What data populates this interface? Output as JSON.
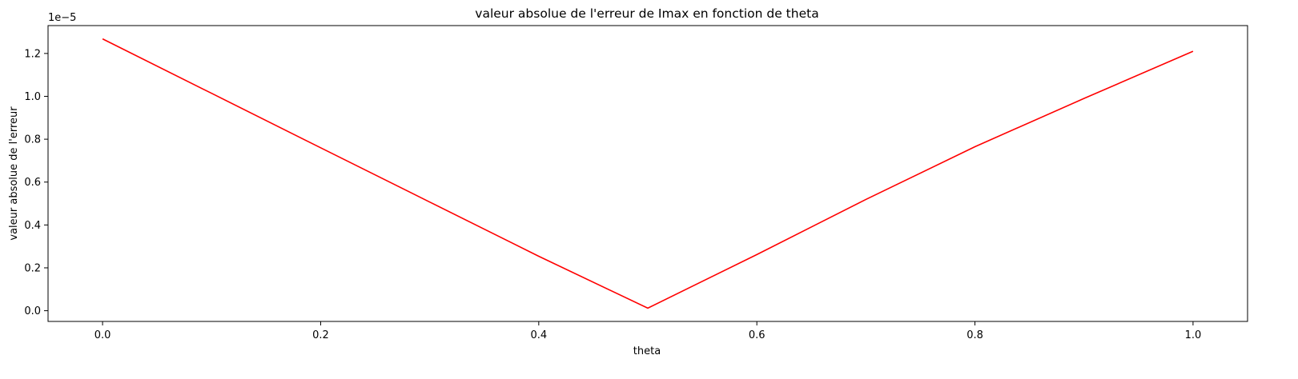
{
  "chart_data": {
    "type": "line",
    "title": "valeur absolue de l'erreur de Imax en fonction de theta",
    "xlabel": "theta",
    "ylabel": "valeur absolue de l'erreur",
    "y_offset_label": "1e−5",
    "x_ticks": [
      0.0,
      0.2,
      0.4,
      0.6,
      0.8,
      1.0
    ],
    "x_tick_labels": [
      "0.0",
      "0.2",
      "0.4",
      "0.6",
      "0.8",
      "1.0"
    ],
    "y_ticks": [
      0.0,
      0.2,
      0.4,
      0.6,
      0.8,
      1.0,
      1.2
    ],
    "y_tick_labels": [
      "0.0",
      "0.2",
      "0.4",
      "0.6",
      "0.8",
      "1.0",
      "1.2"
    ],
    "y_scale_multiplier": 1e-05,
    "xlim": [
      -0.05,
      1.05
    ],
    "ylim": [
      -0.05,
      1.33
    ],
    "grid": false,
    "series": [
      {
        "color": "#ff0000",
        "x": [
          0.0,
          0.1,
          0.2,
          0.3,
          0.4,
          0.5,
          0.6,
          0.7,
          0.8,
          0.9,
          1.0
        ],
        "y": [
          1.268,
          1.014,
          0.76,
          0.507,
          0.254,
          0.012,
          0.262,
          0.519,
          0.765,
          0.99,
          1.21
        ]
      }
    ]
  }
}
